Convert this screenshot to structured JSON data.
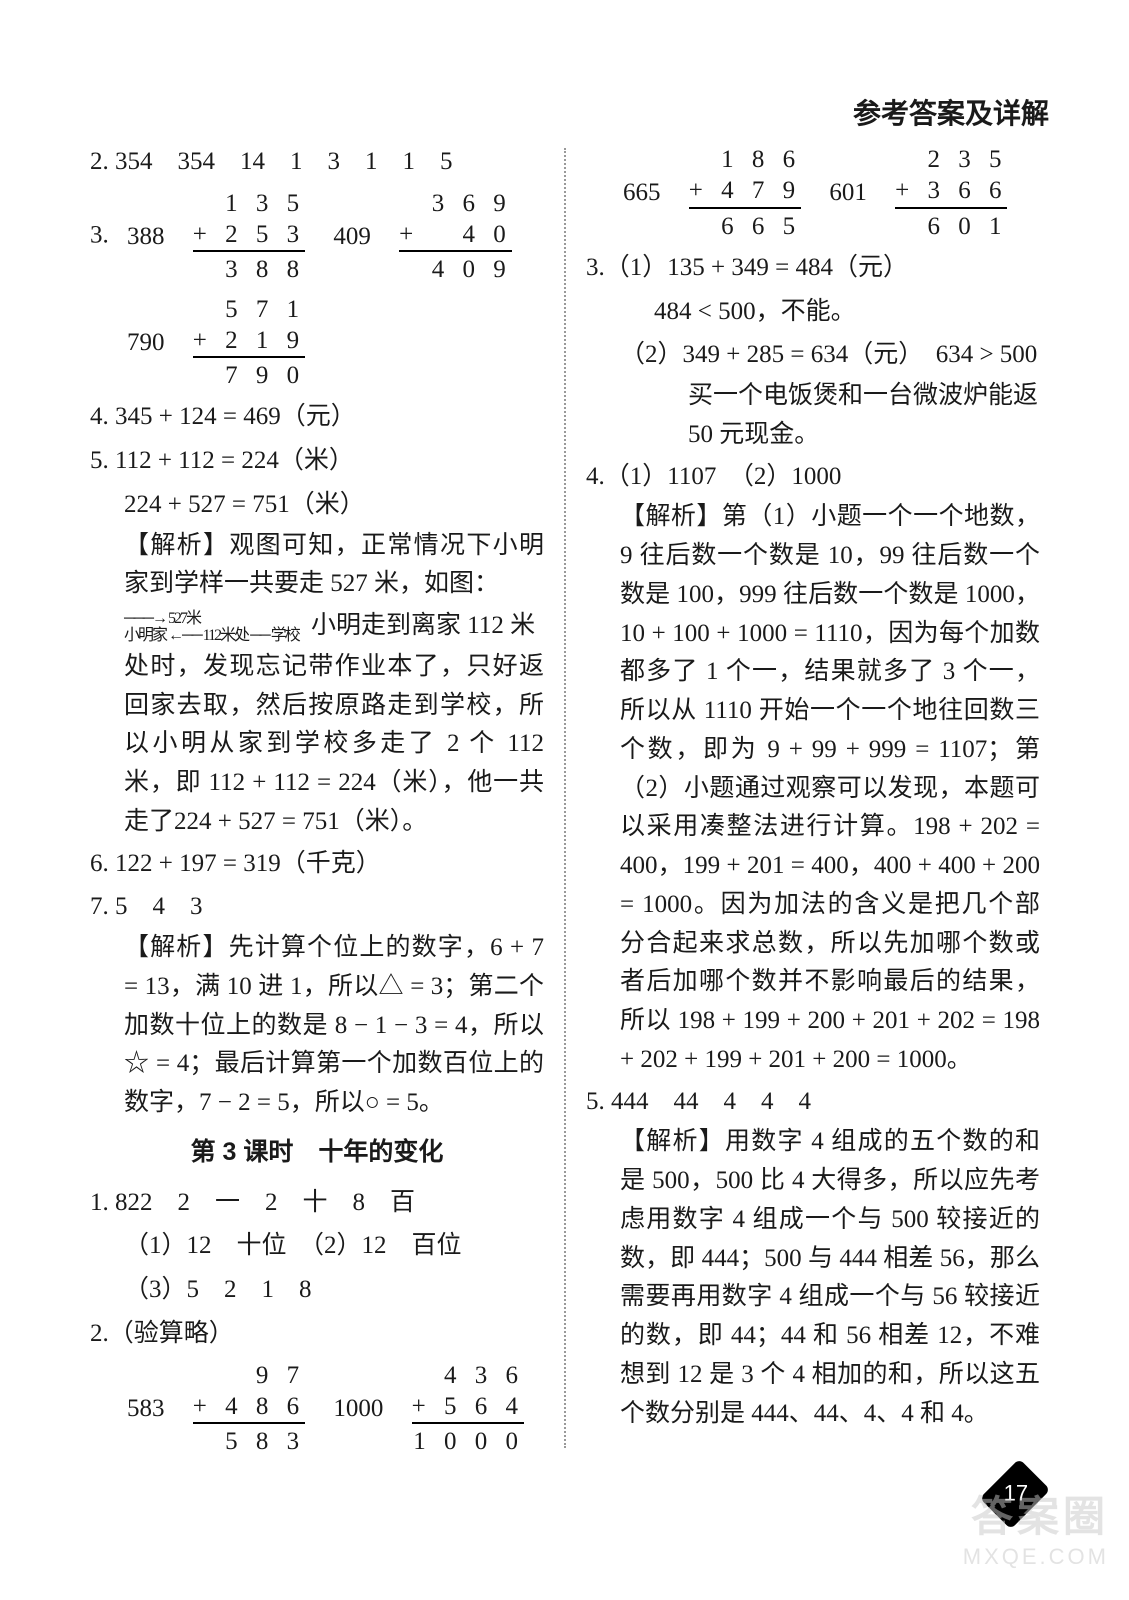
{
  "header": "参考答案及详解",
  "left": {
    "q2": "2. 354　354　14　1　3　1　1　5",
    "q3": {
      "label": "3.",
      "a_label": "388",
      "a_top": "1 3 5",
      "a_mid": "+ 2 5 3",
      "a_bot": "3 8 8",
      "b_label": "409",
      "b_top": "3 6 9",
      "b_mid": "+　 4 0",
      "b_bot": "4 0 9",
      "c_label": "790",
      "c_top": "5 7 1",
      "c_mid": "+ 2 1 9",
      "c_bot": "7 9 0"
    },
    "q4": "4. 345 + 124 = 469（元）",
    "q5a": "5. 112 + 112 = 224（米）",
    "q5b": "224 + 527 = 751（米）",
    "q5_ex1": "【解析】观图可知，正常情况下小明家到学样一共要走 527 米，如图：",
    "q5_diag_top": "───→ 527米",
    "q5_diag_bot": "小明家 ←── 112米处 ── 学校",
    "q5_ex2a": "小明走到离家 112 米",
    "q5_ex2": "处时，发现忘记带作业本了，只好返回家去取，然后按原路走到学校，所以小明从家到学校多走了 2 个 112 米，即 112 + 112 = 224（米），他一共走了224 + 527 = 751（米）。",
    "q6": "6. 122 + 197 = 319（千克）",
    "q7": "7. 5　4　3",
    "q7_ex": "【解析】先计算个位上的数字，6 + 7 = 13，满 10 进 1，所以△ = 3；第二个加数十位上的数是 8 − 1 − 3 = 4，所以☆ = 4；最后计算第一个加数百位上的数字，7 − 2 = 5，所以○ = 5。",
    "section": "第 3 课时　十年的变化",
    "s1a": "1. 822　2　一　2　十　8　百",
    "s1b": "（1）12　十位　（2）12　百位",
    "s1c": "（3）5　2　1　8",
    "s2": "2.（验算略）",
    "s2a_label": "583",
    "s2a_top": "9 7",
    "s2a_mid": "+ 4 8 6",
    "s2a_bot": "5 8 3",
    "s2b_label": "1000",
    "s2b_top": "4 3 6",
    "s2b_mid": "+ 5 6 4",
    "s2b_bot": "1 0 0 0"
  },
  "right": {
    "top_a_label": "665",
    "top_a_top": "1 8 6",
    "top_a_mid": "+ 4 7 9",
    "top_a_bot": "6 6 5",
    "top_b_label": "601",
    "top_b_top": "2 3 5",
    "top_b_mid": "+ 3 6 6",
    "top_b_bot": "6 0 1",
    "q3_1a": "3.（1）135 + 349 = 484（元）",
    "q3_1b": "484 < 500，不能。",
    "q3_2a": "（2）349 + 285 = 634（元）　634 > 500",
    "q3_2b": "买一个电饭煲和一台微波炉能返 50 元现金。",
    "q4": "4.（1）1107　（2）1000",
    "q4_ex": "【解析】第（1）小题一个一个地数，9 往后数一个数是 10，99 往后数一个数是 100，999 往后数一个数是 1000，10 + 100 + 1000 = 1110，因为每个加数都多了 1 个一，结果就多了 3 个一，所以从 1110 开始一个一个地往回数三个数，即为 9 + 99 + 999 = 1107；第（2）小题通过观察可以发现，本题可以采用凑整法进行计算。198 + 202 = 400，199 + 201 = 400，400 + 400 + 200 = 1000。因为加法的含义是把几个部分合起来求总数，所以先加哪个数或者后加哪个数并不影响最后的结果，所以 198 + 199 + 200 + 201 + 202 = 198 + 202 + 199 + 201 + 200 = 1000。",
    "q5": "5. 444　44　4　4　4",
    "q5_ex": "【解析】用数字 4 组成的五个数的和是 500，500 比 4 大得多，所以应先考虑用数字 4 组成一个与 500 较接近的数，即 444；500 与 444 相差 56，那么需要再用数字 4 组成一个与 56 较接近的数，即 44；44 和 56 相差 12，不难想到 12 是 3 个 4 相加的和，所以这五个数分别是 444、44、4、4 和 4。"
  },
  "pagenum": "17",
  "watermark": {
    "line1": "答案圈",
    "line2": "MXQE.COM"
  }
}
